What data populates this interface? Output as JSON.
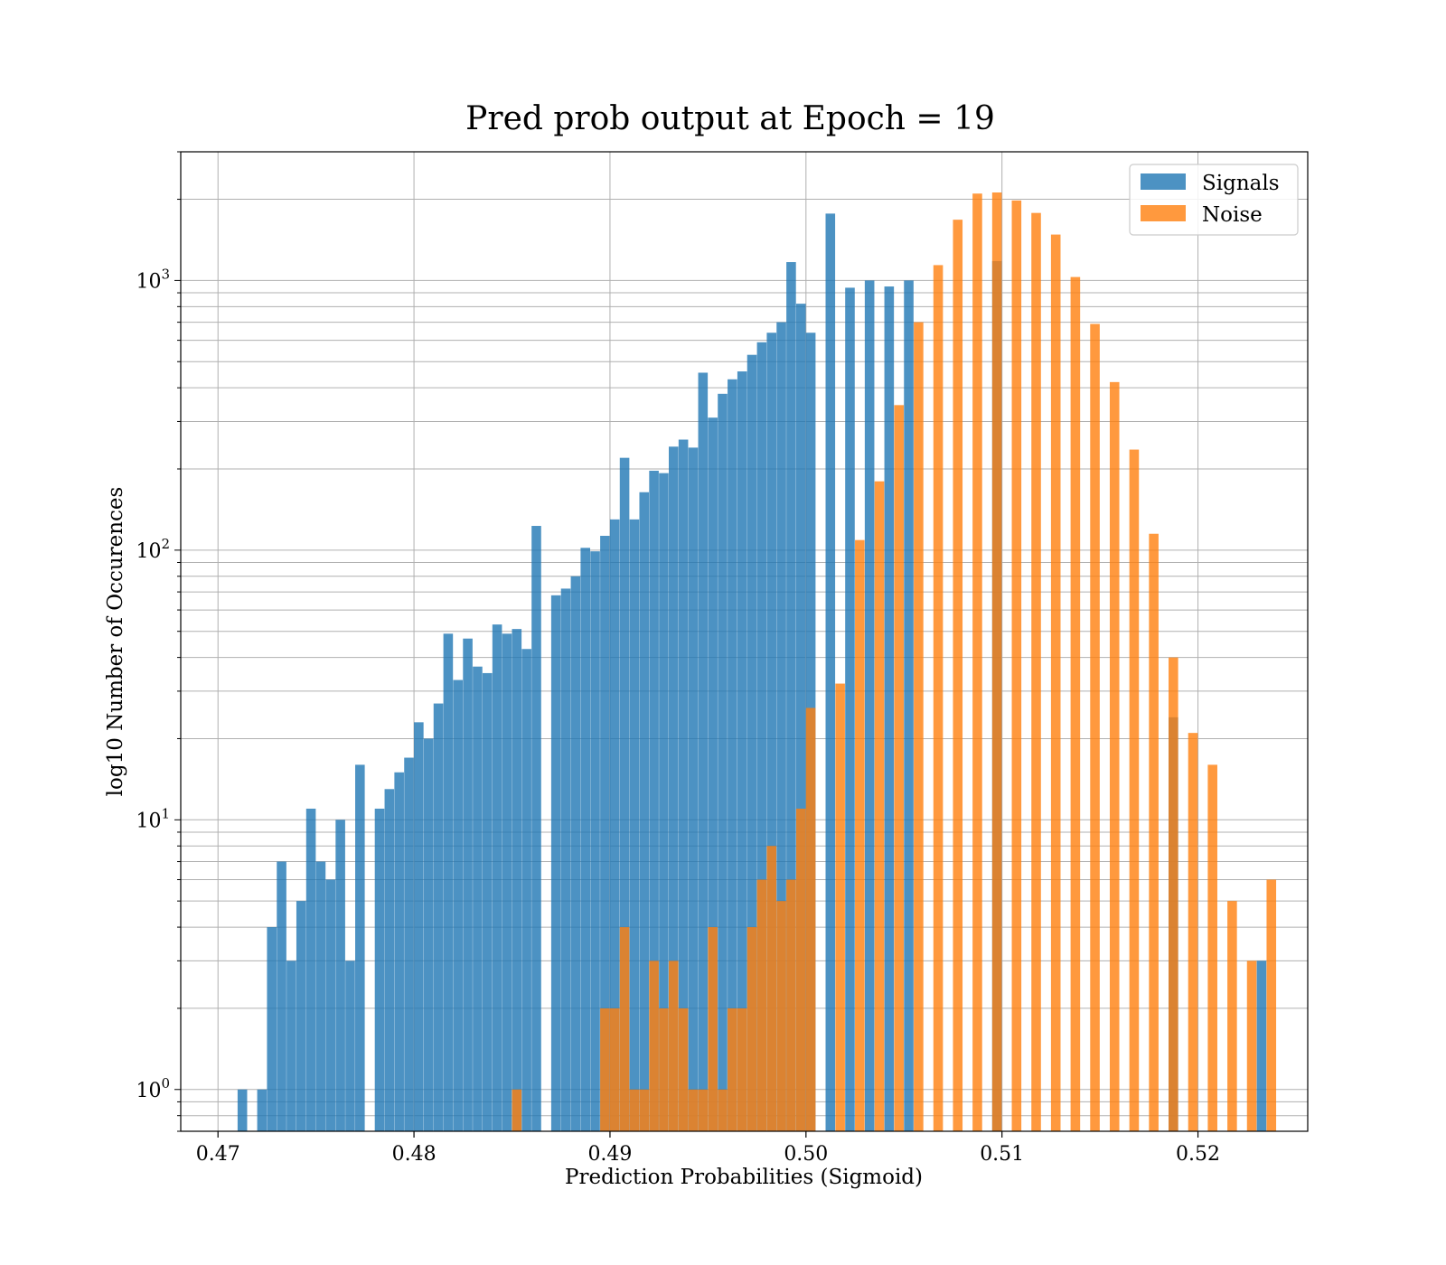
{
  "chart_data": {
    "type": "bar",
    "title": "Pred prob output at Epoch = 19",
    "xlabel": "Prediction Probabilities (Sigmoid)",
    "ylabel": "log10 Number of Occurences",
    "yscale": "log",
    "xlim": [
      0.4681,
      0.5256
    ],
    "ylim": [
      0.7,
      3000
    ],
    "grid": true,
    "legend_position": "top-right",
    "x_ticks": [
      {
        "value": 0.47,
        "label": "0.47"
      },
      {
        "value": 0.48,
        "label": "0.48"
      },
      {
        "value": 0.49,
        "label": "0.49"
      },
      {
        "value": 0.5,
        "label": "0.50"
      },
      {
        "value": 0.51,
        "label": "0.51"
      },
      {
        "value": 0.52,
        "label": "0.52"
      }
    ],
    "y_ticks": [
      {
        "value": 1,
        "base": "10",
        "exp": "0"
      },
      {
        "value": 10,
        "base": "10",
        "exp": "1"
      },
      {
        "value": 100,
        "base": "10",
        "exp": "2"
      },
      {
        "value": 1000,
        "base": "10",
        "exp": "3"
      }
    ],
    "series": [
      {
        "name": "Signals",
        "color": "#1f77b4",
        "opacity": 0.8,
        "bin_width": 0.000488,
        "bins": [
          [
            0.471,
            1
          ],
          [
            0.472,
            1
          ],
          [
            0.4725,
            4
          ],
          [
            0.473,
            7
          ],
          [
            0.4735,
            3
          ],
          [
            0.474,
            5
          ],
          [
            0.4745,
            11
          ],
          [
            0.475,
            7
          ],
          [
            0.4755,
            6
          ],
          [
            0.476,
            10
          ],
          [
            0.4765,
            3
          ],
          [
            0.477,
            16
          ],
          [
            0.478,
            11
          ],
          [
            0.4785,
            13
          ],
          [
            0.479,
            15
          ],
          [
            0.4795,
            17
          ],
          [
            0.48,
            23
          ],
          [
            0.4805,
            20
          ],
          [
            0.481,
            27
          ],
          [
            0.4815,
            49
          ],
          [
            0.482,
            33
          ],
          [
            0.4825,
            47
          ],
          [
            0.483,
            37
          ],
          [
            0.4835,
            35
          ],
          [
            0.484,
            53
          ],
          [
            0.4845,
            49
          ],
          [
            0.485,
            51
          ],
          [
            0.4855,
            43
          ],
          [
            0.486,
            123
          ],
          [
            0.487,
            68
          ],
          [
            0.4875,
            72
          ],
          [
            0.488,
            80
          ],
          [
            0.4885,
            102
          ],
          [
            0.489,
            99
          ],
          [
            0.4895,
            113
          ],
          [
            0.49,
            130
          ],
          [
            0.4905,
            220
          ],
          [
            0.491,
            130
          ],
          [
            0.4915,
            164
          ],
          [
            0.492,
            197
          ],
          [
            0.4925,
            193
          ],
          [
            0.493,
            242
          ],
          [
            0.4935,
            257
          ],
          [
            0.494,
            240
          ],
          [
            0.4945,
            455
          ],
          [
            0.495,
            310
          ],
          [
            0.4955,
            380
          ],
          [
            0.496,
            430
          ],
          [
            0.4965,
            460
          ],
          [
            0.497,
            530
          ],
          [
            0.4975,
            590
          ],
          [
            0.498,
            640
          ],
          [
            0.4985,
            700
          ],
          [
            0.499,
            1170
          ],
          [
            0.4995,
            820
          ],
          [
            0.5,
            640
          ],
          [
            0.501,
            1770
          ],
          [
            0.502,
            940
          ],
          [
            0.503,
            1000
          ],
          [
            0.504,
            950
          ],
          [
            0.505,
            1000
          ],
          [
            0.5095,
            1180
          ],
          [
            0.5185,
            24
          ],
          [
            0.523,
            3
          ]
        ]
      },
      {
        "name": "Noise",
        "color": "#ff7f0e",
        "opacity": 0.8,
        "bin_width": 0.000488,
        "bins": [
          [
            0.485,
            1
          ],
          [
            0.4895,
            2
          ],
          [
            0.49,
            2
          ],
          [
            0.4905,
            4
          ],
          [
            0.491,
            1
          ],
          [
            0.4915,
            1
          ],
          [
            0.492,
            3
          ],
          [
            0.4925,
            2
          ],
          [
            0.493,
            3
          ],
          [
            0.4935,
            2
          ],
          [
            0.494,
            1
          ],
          [
            0.4945,
            1
          ],
          [
            0.495,
            4
          ],
          [
            0.4955,
            1
          ],
          [
            0.496,
            2
          ],
          [
            0.4965,
            2
          ],
          [
            0.497,
            4
          ],
          [
            0.4975,
            6
          ],
          [
            0.498,
            8
          ],
          [
            0.4985,
            5
          ],
          [
            0.499,
            6
          ],
          [
            0.4995,
            11
          ],
          [
            0.5,
            26
          ],
          [
            0.5015,
            32
          ],
          [
            0.5025,
            109
          ],
          [
            0.5035,
            180
          ],
          [
            0.5045,
            345
          ],
          [
            0.5055,
            700
          ],
          [
            0.5065,
            1140
          ],
          [
            0.5075,
            1680
          ],
          [
            0.5085,
            2100
          ],
          [
            0.5095,
            2120
          ],
          [
            0.5105,
            1980
          ],
          [
            0.5115,
            1780
          ],
          [
            0.5125,
            1480
          ],
          [
            0.5135,
            1030
          ],
          [
            0.5145,
            690
          ],
          [
            0.5155,
            420
          ],
          [
            0.5165,
            236
          ],
          [
            0.5175,
            115
          ],
          [
            0.5185,
            40
          ],
          [
            0.5195,
            21
          ],
          [
            0.5205,
            16
          ],
          [
            0.5215,
            5
          ],
          [
            0.5225,
            3
          ],
          [
            0.5235,
            6
          ]
        ]
      }
    ]
  }
}
